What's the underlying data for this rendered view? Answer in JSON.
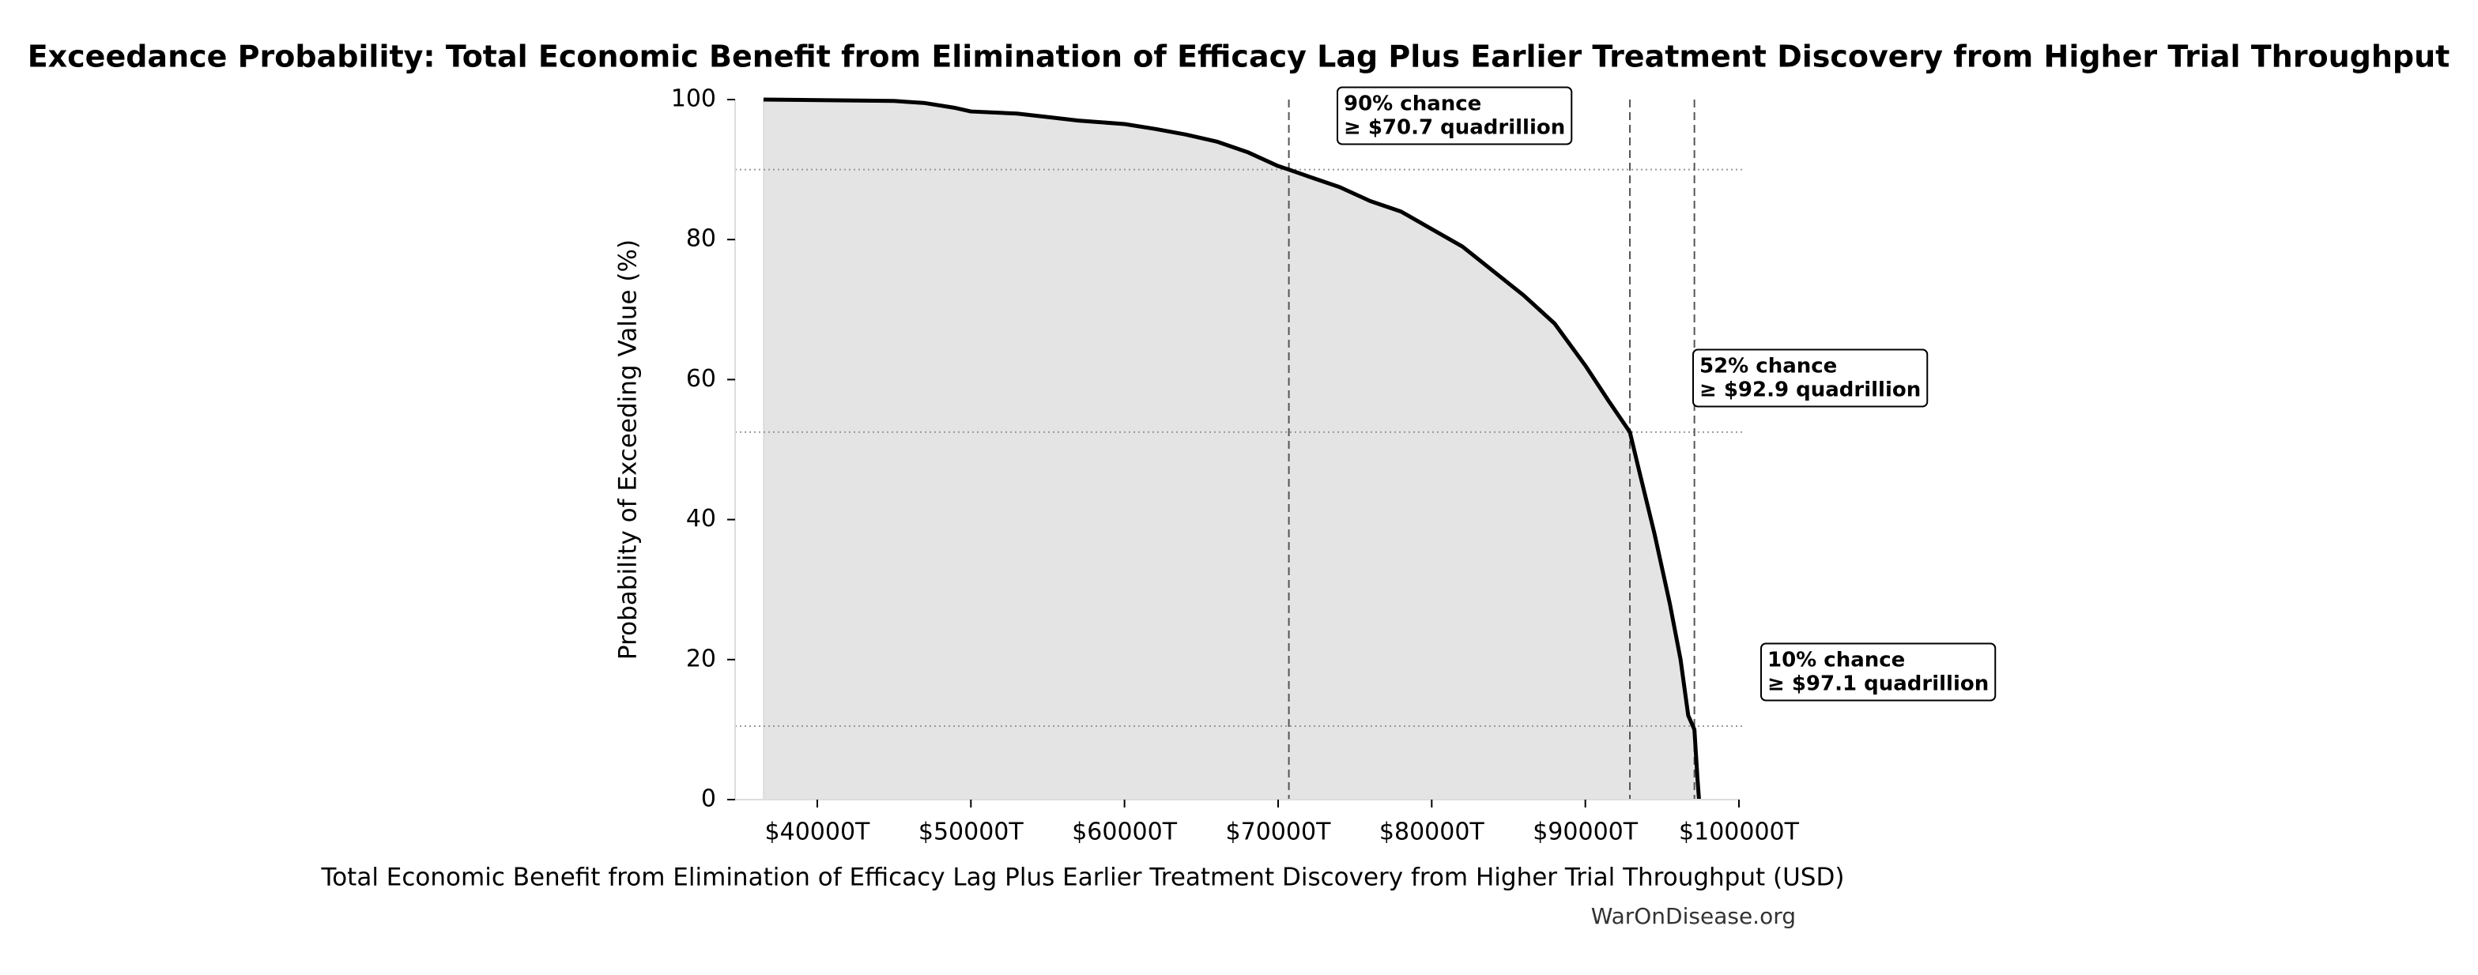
{
  "chart_data": {
    "type": "line",
    "title": "Exceedance Probability: Total Economic Benefit from Elimination of Efficacy Lag Plus Earlier Treatment Discovery from Higher Trial Throughput",
    "x_label": "Total Economic Benefit from Elimination of Efficacy Lag Plus Earlier Treatment Discovery from Higher Trial Throughput (USD)",
    "y_label": "Probability of Exceeding Value (%)",
    "source": "WarOnDisease.org",
    "x": [
      36500,
      45000,
      47000,
      49000,
      50000,
      53000,
      55000,
      57000,
      60000,
      62000,
      64000,
      66000,
      68000,
      70000,
      70700,
      72000,
      74000,
      76000,
      78000,
      80000,
      82000,
      84000,
      86000,
      88000,
      90000,
      91500,
      92900,
      93500,
      94500,
      95500,
      96200,
      96700,
      97100,
      97300,
      97400
    ],
    "series": [
      {
        "color": "#000000",
        "fill": "#e4e4e4",
        "values": [
          100,
          99.8,
          99.5,
          98.8,
          98.3,
          98,
          97.5,
          97,
          96.5,
          95.8,
          95,
          94,
          92.5,
          90.5,
          90,
          89,
          87.5,
          85.5,
          84,
          81.5,
          79,
          75.5,
          72,
          68,
          62,
          57,
          52.5,
          47,
          38,
          28,
          20,
          12,
          10,
          3,
          0
        ]
      }
    ],
    "xlim": [
      34650,
      100000
    ],
    "ylim": [
      0,
      100
    ],
    "xticks": [
      {
        "value": 40000,
        "label": "$40000T"
      },
      {
        "value": 50000,
        "label": "$50000T"
      },
      {
        "value": 60000,
        "label": "$60000T"
      },
      {
        "value": 70000,
        "label": "$70000T"
      },
      {
        "value": 80000,
        "label": "$80000T"
      },
      {
        "value": 90000,
        "label": "$90000T"
      },
      {
        "value": 100000,
        "label": "$100000T"
      }
    ],
    "yticks": [
      0,
      20,
      40,
      60,
      80,
      100
    ],
    "hlines": [
      90,
      52.5,
      10.5
    ],
    "vlines": [
      70700,
      92900,
      97100
    ],
    "annotations": [
      {
        "lines": [
          "90% chance",
          "≥ $70.7 quadrillion"
        ]
      },
      {
        "lines": [
          "52% chance",
          "≥ $92.9 quadrillion"
        ]
      },
      {
        "lines": [
          "10% chance",
          "≥ $97.1 quadrillion"
        ]
      }
    ]
  }
}
